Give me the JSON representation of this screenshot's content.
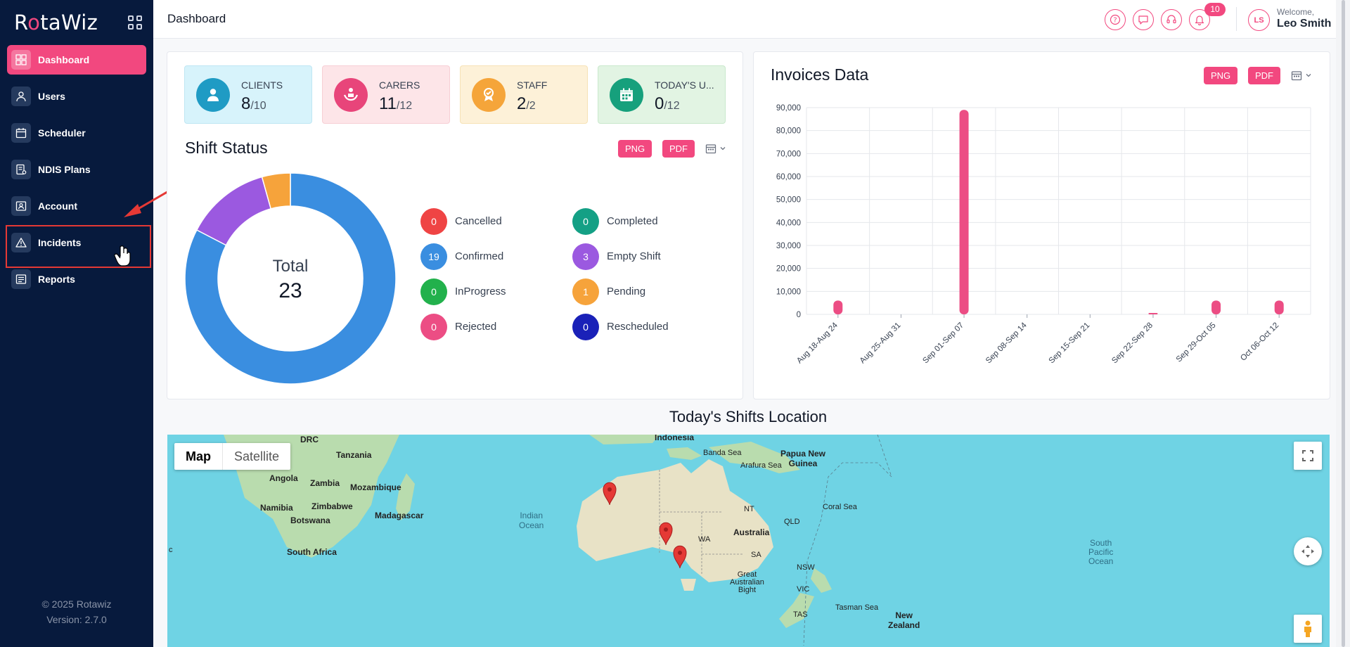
{
  "app": {
    "logo_pre": "R",
    "logo_accent": "o",
    "logo_post": "taWiz",
    "version_line1": "© 2025 Rotawiz",
    "version_line2": "Version: 2.7.0"
  },
  "sidebar": {
    "items": [
      {
        "label": "Dashboard",
        "icon": "dashboard-icon",
        "active": true
      },
      {
        "label": "Users",
        "icon": "user-icon"
      },
      {
        "label": "Scheduler",
        "icon": "calendar-icon"
      },
      {
        "label": "NDIS Plans",
        "icon": "document-icon"
      },
      {
        "label": "Account",
        "icon": "id-card-icon"
      },
      {
        "label": "Incidents",
        "icon": "warning-icon"
      },
      {
        "label": "Reports",
        "icon": "report-icon"
      }
    ]
  },
  "header": {
    "title": "Dashboard",
    "notification_count": "10",
    "avatar_initials": "LS",
    "welcome": "Welcome,",
    "username": "Leo Smith"
  },
  "stats": [
    {
      "label": "CLIENTS",
      "value": "8",
      "total": "/10",
      "bg": "#d7f3fb",
      "icon_bg": "#1f9bc4",
      "icon": "client-icon"
    },
    {
      "label": "CARERS",
      "value": "11",
      "total": "/12",
      "bg": "#fde5e8",
      "icon_bg": "#e8457a",
      "icon": "carer-icon"
    },
    {
      "label": "STAFF",
      "value": "2",
      "total": "/2",
      "bg": "#fdf1d8",
      "icon_bg": "#f5a53a",
      "icon": "staff-icon"
    },
    {
      "label": "TODAY'S U...",
      "value": "0",
      "total": "/12",
      "bg": "#e2f4e3",
      "icon_bg": "#16a07c",
      "icon": "calendar-icon"
    }
  ],
  "shift_status": {
    "title": "Shift Status",
    "png": "PNG",
    "pdf": "PDF",
    "total_label": "Total",
    "total_value": "23",
    "legend": [
      {
        "label": "Cancelled",
        "value": "0",
        "color": "#ef4444"
      },
      {
        "label": "Completed",
        "value": "0",
        "color": "#14a085"
      },
      {
        "label": "Confirmed",
        "value": "19",
        "color": "#3a8ee0"
      },
      {
        "label": "Empty Shift",
        "value": "3",
        "color": "#9b59e0"
      },
      {
        "label": "InProgress",
        "value": "0",
        "color": "#22b14c"
      },
      {
        "label": "Pending",
        "value": "1",
        "color": "#f6a33b"
      },
      {
        "label": "Rejected",
        "value": "0",
        "color": "#ec4d84"
      },
      {
        "label": "Rescheduled",
        "value": "0",
        "color": "#1a21b8"
      }
    ]
  },
  "invoices": {
    "title": "Invoices Data",
    "png": "PNG",
    "pdf": "PDF"
  },
  "chart_data": {
    "type": "bar",
    "title": "Invoices Data",
    "categories": [
      "Aug 18-Aug 24",
      "Aug 25-Aug 31",
      "Sep 01-Sep 07",
      "Sep 08-Sep 14",
      "Sep 15-Sep 21",
      "Sep 22-Sep 28",
      "Sep 29-Oct 05",
      "Oct 06-Oct 12"
    ],
    "values": [
      6000,
      0,
      89000,
      0,
      0,
      500,
      6000,
      6000
    ],
    "ylim": [
      0,
      90000
    ],
    "yticks": [
      "0",
      "10,000",
      "20,000",
      "30,000",
      "40,000",
      "50,000",
      "60,000",
      "70,000",
      "80,000",
      "90,000"
    ],
    "color": "#ec4d84",
    "grid": true
  },
  "map": {
    "title": "Today's Shifts Location",
    "tab_map": "Map",
    "tab_satellite": "Satellite",
    "labels": {
      "drc": "DRC",
      "tanzania": "Tanzania",
      "angola": "Angola",
      "zambia": "Zambia",
      "mozambique": "Mozambique",
      "zimbabwe": "Zimbabwe",
      "namibia": "Namibia",
      "botswana": "Botswana",
      "madagascar": "Madagascar",
      "south_africa": "South Africa",
      "indian_ocean_1": "Indian",
      "indian_ocean_2": "Ocean",
      "indonesia": "Indonesia",
      "banda_sea": "Banda Sea",
      "arafura_sea": "Arafura Sea",
      "png_1": "Papua New",
      "png_2": "Guinea",
      "nt": "NT",
      "qld": "QLD",
      "wa": "WA",
      "australia": "Australia",
      "sa": "SA",
      "coral_sea": "Coral Sea",
      "nsw": "NSW",
      "vic": "VIC",
      "tas": "TAS",
      "gab_1": "Great",
      "gab_2": "Australian",
      "gab_3": "Bight",
      "tasman_sea": "Tasman Sea",
      "nz_1": "New",
      "nz_2": "Zealand",
      "spo_1": "South",
      "spo_2": "Pacific",
      "spo_3": "Ocean",
      "c": "c"
    }
  }
}
